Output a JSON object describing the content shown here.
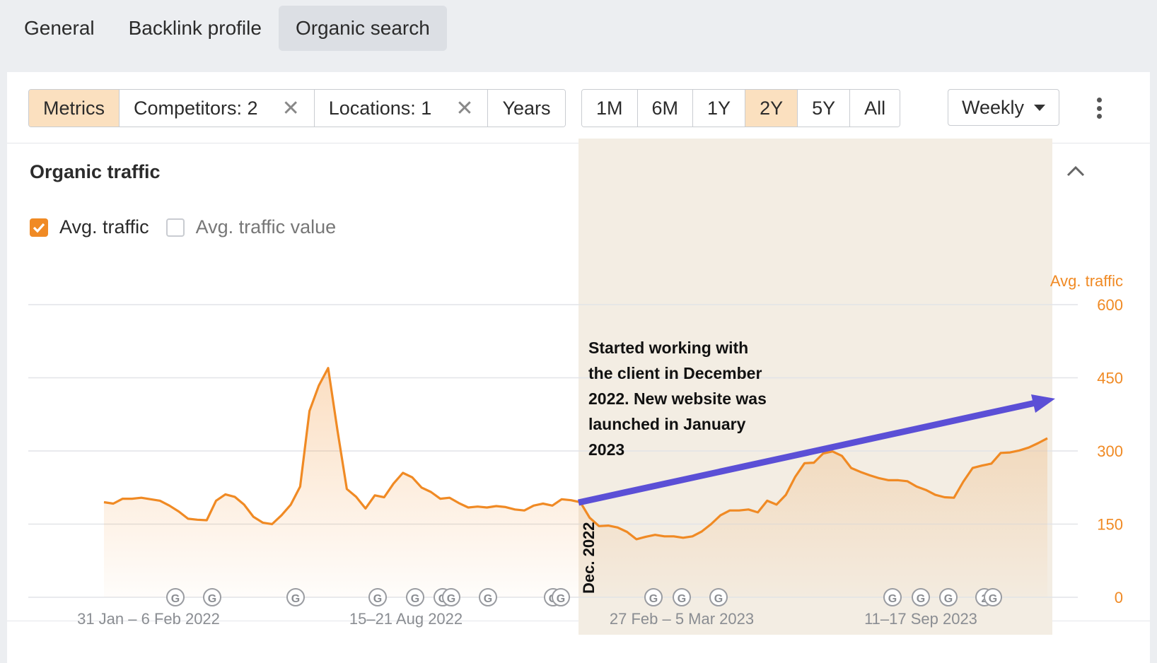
{
  "tabs": [
    {
      "label": "General",
      "active": false
    },
    {
      "label": "Backlink profile",
      "active": false
    },
    {
      "label": "Organic search",
      "active": true
    }
  ],
  "toolbar": {
    "metrics_label": "Metrics",
    "competitors_label": "Competitors: 2",
    "locations_label": "Locations: 1",
    "years_label": "Years",
    "ranges": [
      "1M",
      "6M",
      "1Y",
      "2Y",
      "5Y",
      "All"
    ],
    "active_range": "2Y",
    "interval_label": "Weekly"
  },
  "section": {
    "title": "Organic traffic",
    "metric_checked_label": "Avg. traffic",
    "metric_unchecked_label": "Avg. traffic value"
  },
  "colors": {
    "accent": "#f08a24",
    "active_button": "#fbe0bf",
    "highlight_band": "#f3ede3",
    "arrow": "#5b4fd6"
  },
  "chart_data": {
    "type": "area",
    "y_axis_title": "Avg. traffic",
    "y_ticks": [
      "0",
      "150",
      "300",
      "450",
      "600"
    ],
    "ylim": [
      0,
      600
    ],
    "x_tick_labels": [
      "31 Jan – 6 Feb 2022",
      "15–21 Aug 2022",
      "27 Feb – 5 Mar 2023",
      "11–17 Sep 2023"
    ],
    "grid": true,
    "series": [
      {
        "name": "Avg. traffic",
        "values": [
          195,
          192,
          202,
          202,
          204,
          201,
          198,
          188,
          176,
          161,
          159,
          158,
          198,
          211,
          206,
          190,
          165,
          153,
          150,
          168,
          190,
          227,
          382,
          434,
          470,
          342,
          222,
          206,
          182,
          209,
          205,
          233,
          255,
          246,
          225,
          216,
          202,
          204,
          193,
          184,
          186,
          184,
          187,
          185,
          180,
          178,
          188,
          192,
          188,
          201,
          199,
          195,
          163,
          146,
          147,
          143,
          134,
          119,
          124,
          128,
          125,
          125,
          122,
          125,
          135,
          150,
          168,
          178,
          178,
          180,
          174,
          198,
          190,
          210,
          247,
          275,
          276,
          295,
          299,
          290,
          265,
          257,
          250,
          244,
          240,
          240,
          238,
          227,
          220,
          210,
          205,
          204,
          237,
          265,
          270,
          274,
          296,
          297,
          301,
          307,
          316,
          326
        ]
      }
    ],
    "highlight": {
      "label": "Dec. 2022"
    },
    "annotation": "Started working with the client in December 2022. New website was launched in January 2023",
    "google_update_markers": [
      "G",
      "G",
      "G",
      "G",
      "G",
      "G",
      "G",
      "G",
      "G",
      "G",
      "G",
      "G",
      "G",
      "G",
      "G",
      "G",
      "2",
      "G",
      "G"
    ]
  }
}
